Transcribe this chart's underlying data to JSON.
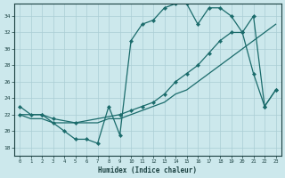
{
  "xlabel": "Humidex (Indice chaleur)",
  "bg_color": "#cce8ec",
  "grid_color": "#aacdd4",
  "line_color": "#1a6b6b",
  "xlim": [
    -0.5,
    23.5
  ],
  "ylim": [
    17,
    35.5
  ],
  "yticks": [
    18,
    20,
    22,
    24,
    26,
    28,
    30,
    32,
    34
  ],
  "xticks": [
    0,
    1,
    2,
    3,
    4,
    5,
    6,
    7,
    8,
    9,
    10,
    11,
    12,
    13,
    14,
    15,
    16,
    17,
    18,
    19,
    20,
    21,
    22,
    23
  ],
  "series1_x": [
    0,
    1,
    2,
    3,
    4,
    5,
    6,
    7,
    8,
    9,
    10,
    11,
    12,
    13,
    14,
    15,
    16,
    17,
    18,
    19,
    20,
    21,
    22,
    23
  ],
  "series1_y": [
    23,
    22,
    22,
    21,
    20,
    19,
    19,
    18.5,
    23,
    19.5,
    31,
    33,
    33.5,
    35,
    35.5,
    35.5,
    33,
    35,
    35,
    34,
    32,
    27,
    23,
    25
  ],
  "series2_x": [
    0,
    2,
    3,
    5,
    9,
    10,
    11,
    12,
    13,
    14,
    15,
    16,
    17,
    18,
    19,
    20,
    21,
    22,
    23
  ],
  "series2_y": [
    22,
    22,
    21.5,
    21,
    22,
    22.5,
    23,
    23.5,
    24.5,
    26,
    27,
    28,
    29.5,
    31,
    32,
    32,
    34,
    23,
    25
  ],
  "series3_x": [
    0,
    1,
    2,
    3,
    4,
    5,
    6,
    7,
    8,
    9,
    10,
    11,
    12,
    13,
    14,
    15,
    16,
    17,
    18,
    19,
    20,
    21,
    22,
    23
  ],
  "series3_y": [
    22,
    21.5,
    21.5,
    21,
    21,
    21,
    21,
    21,
    21.5,
    21.5,
    22,
    22.5,
    23,
    23.5,
    24.5,
    25,
    26,
    27,
    28,
    29,
    30,
    31,
    32,
    33
  ]
}
